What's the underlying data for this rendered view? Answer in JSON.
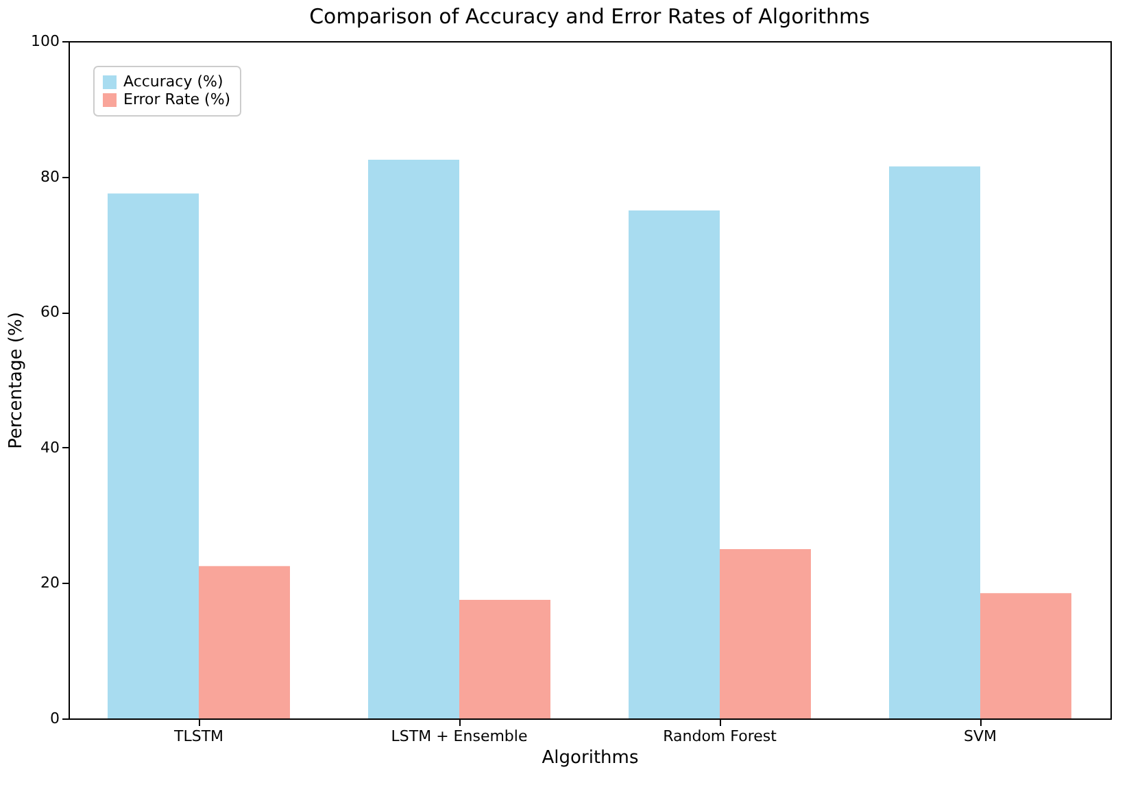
{
  "chart_data": {
    "type": "bar",
    "title": "Comparison of Accuracy and Error Rates of Algorithms",
    "xlabel": "Algorithms",
    "ylabel": "Percentage (%)",
    "categories": [
      "TLSTM",
      "LSTM + Ensemble",
      "Random Forest",
      "SVM"
    ],
    "series": [
      {
        "name": "Accuracy (%)",
        "color": "#a8dcf0",
        "values": [
          77.5,
          82.5,
          75,
          81.5
        ]
      },
      {
        "name": "Error Rate (%)",
        "color": "#f9a59a",
        "values": [
          22.5,
          17.5,
          25,
          18.5
        ]
      }
    ],
    "ylim": [
      0,
      100
    ],
    "yticks": [
      0,
      20,
      40,
      60,
      80,
      100
    ],
    "grid": false,
    "legend": "top left"
  }
}
